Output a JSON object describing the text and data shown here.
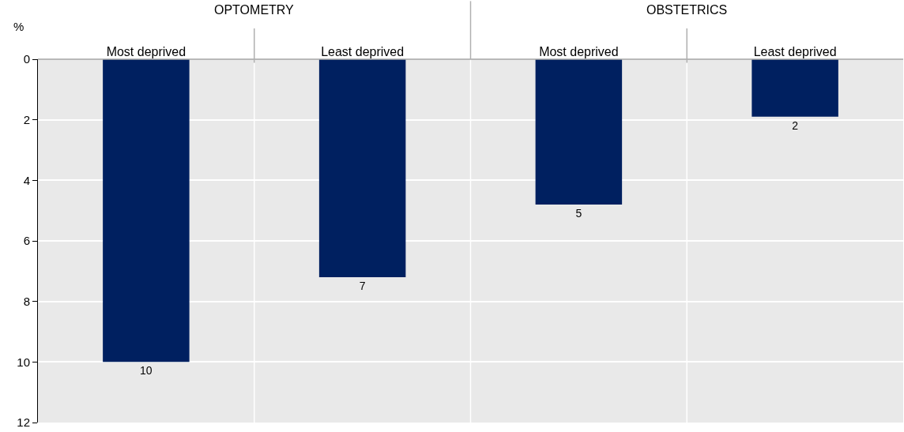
{
  "chart_data": {
    "type": "bar",
    "ylabel": "%",
    "categories": [
      "Most deprived",
      "Least deprived",
      "Most deprived",
      "Least deprived"
    ],
    "values": [
      10,
      7.2,
      4.8,
      1.9
    ],
    "value_labels": [
      "10",
      "7",
      "5",
      "2"
    ],
    "color": "#002060",
    "ylim": [
      12,
      0
    ],
    "yticks": [
      0,
      2,
      4,
      6,
      8,
      10,
      12
    ],
    "grid": true,
    "annotations": [
      "OPTOMETRY",
      "OBSTETRICS"
    ]
  }
}
